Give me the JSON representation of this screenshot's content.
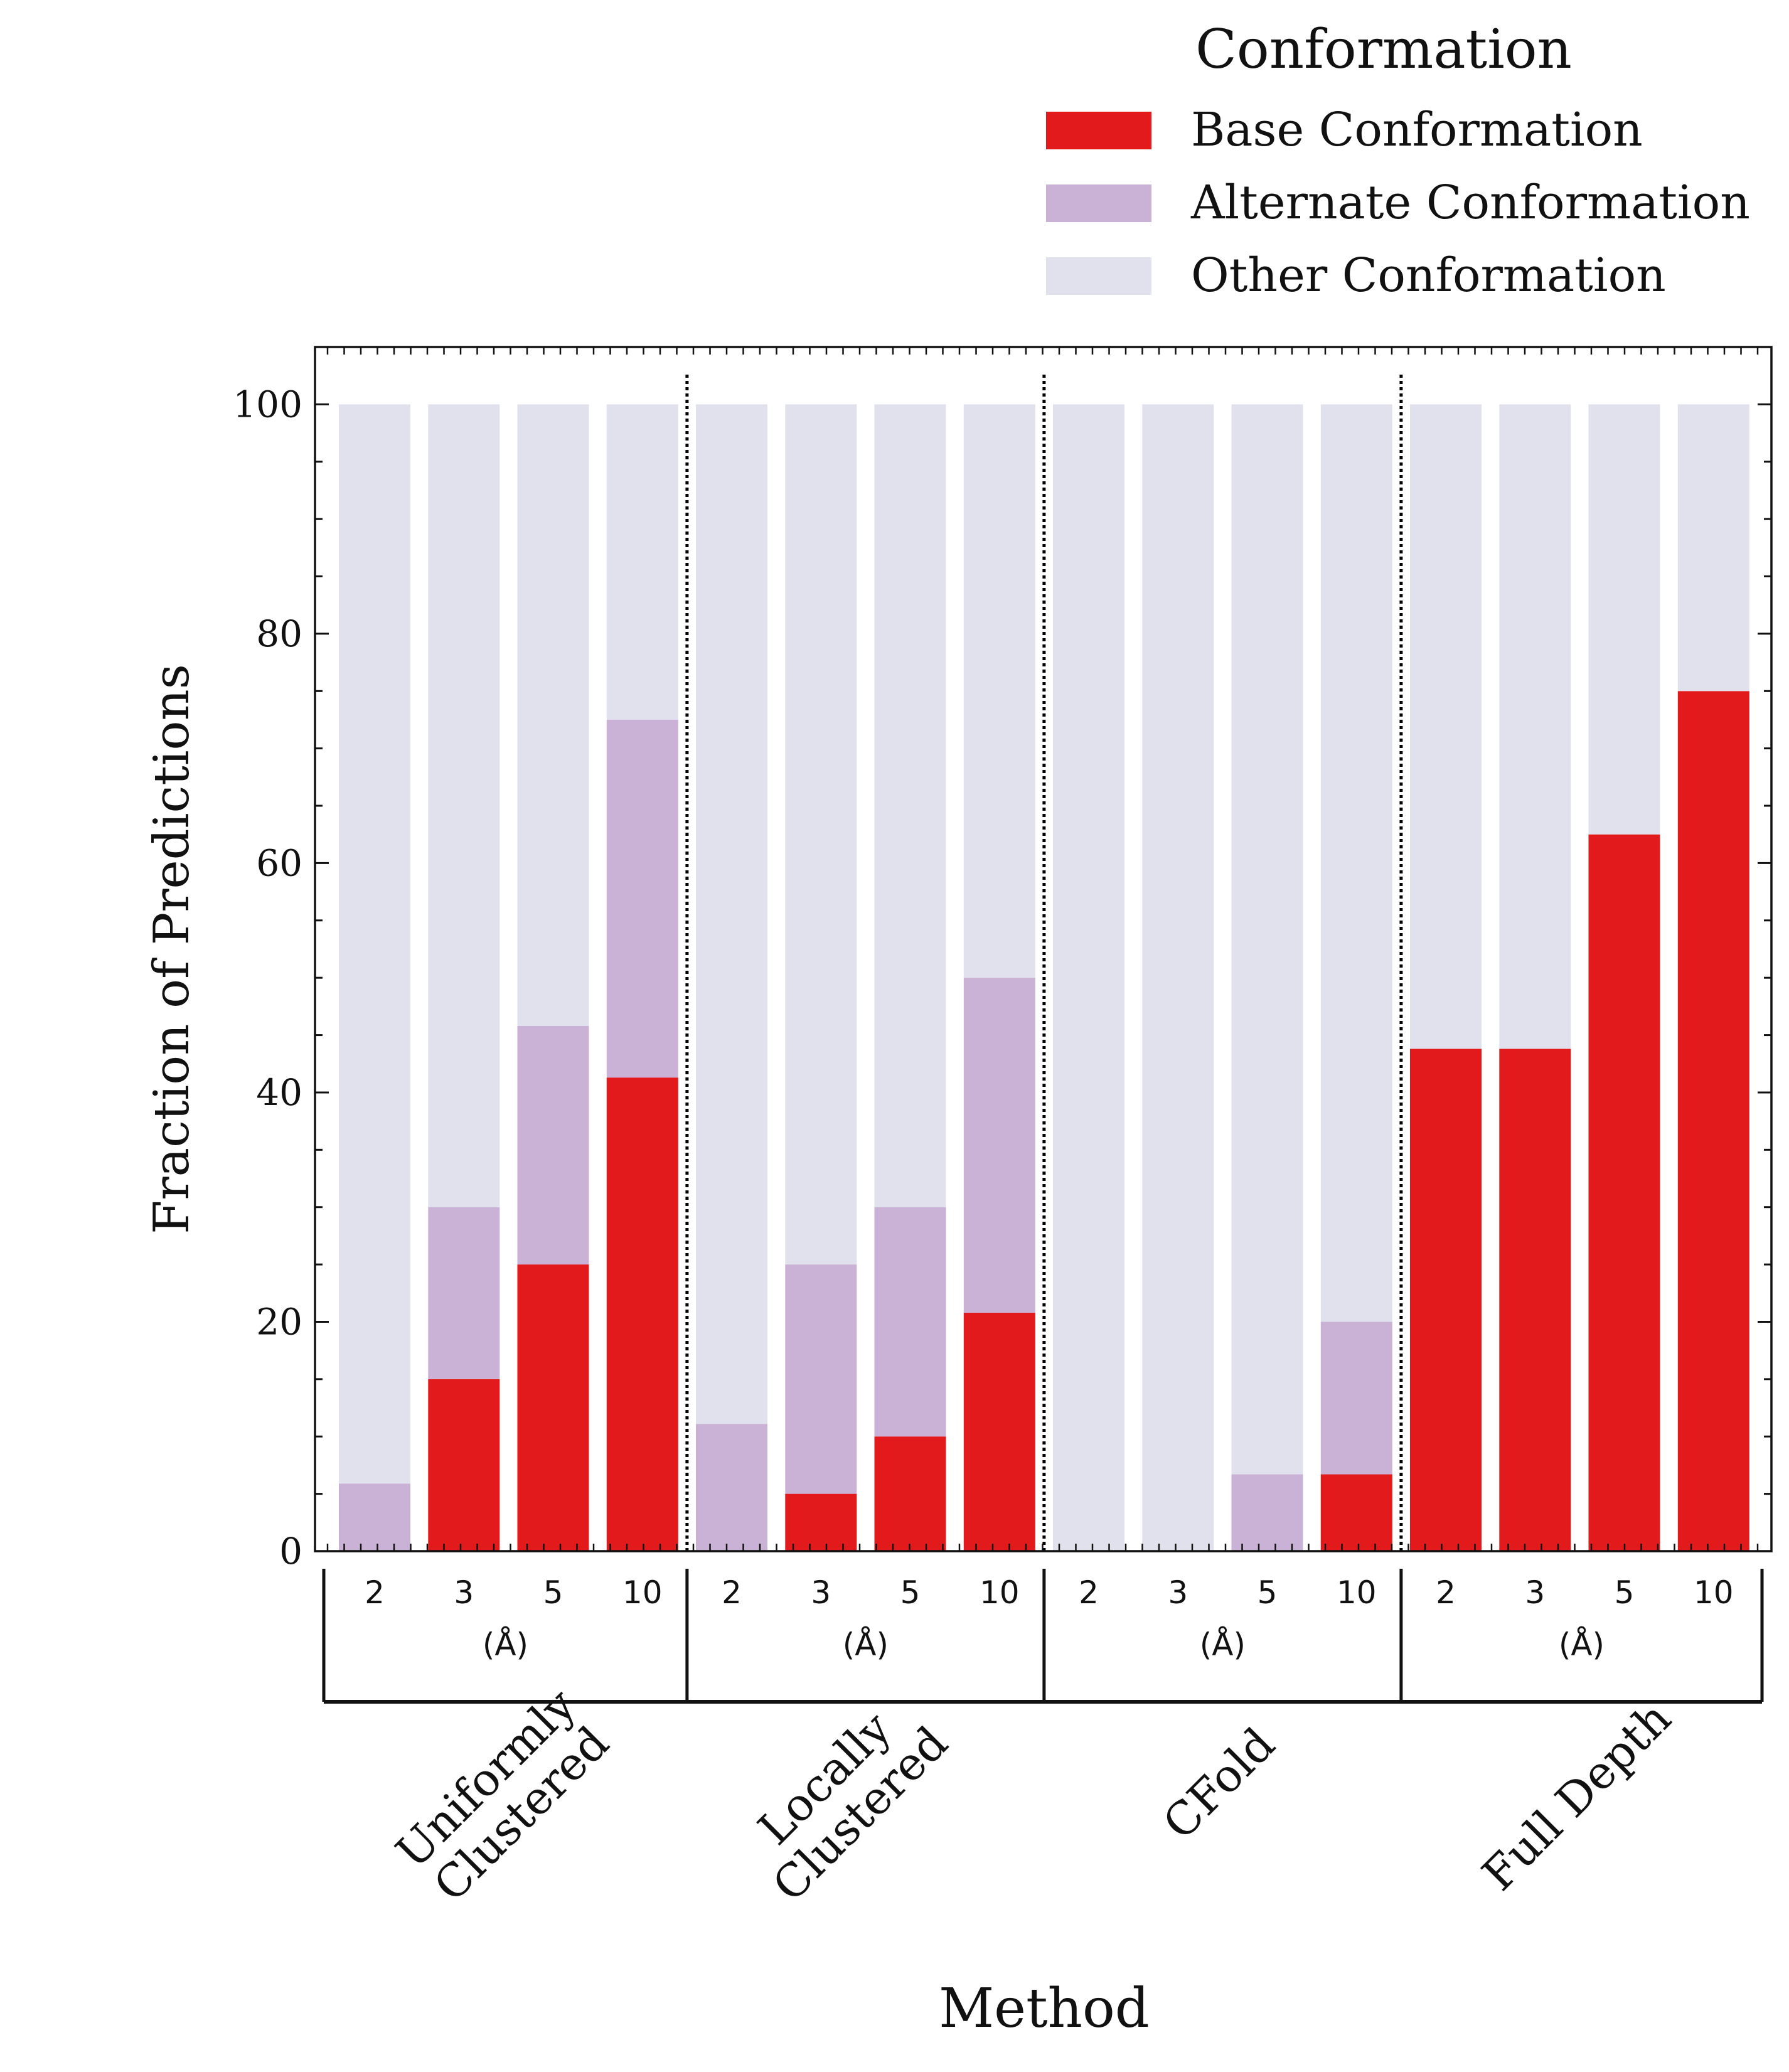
{
  "chart_data": {
    "type": "bar",
    "stacked": true,
    "ylabel": "Fraction of Predictions",
    "xlabel": "Method",
    "ylim": [
      0,
      105
    ],
    "yticks": [
      0,
      20,
      40,
      60,
      80,
      100
    ],
    "grid": false,
    "legend": {
      "title": "Conformation",
      "position": "top-right, above plot",
      "entries": [
        "Base Conformation",
        "Alternate Conformation",
        "Other Conformation"
      ]
    },
    "colors": {
      "Base Conformation": "#e31a1c",
      "Alternate Conformation": "#cab2d6",
      "Other Conformation": "#e1e1ed"
    },
    "unit_label": "(Å)",
    "group_separator_style": "dotted",
    "groups": [
      {
        "name": "Uniformly\nClustered",
        "categories": [
          "2",
          "3",
          "5",
          "10"
        ],
        "series": [
          {
            "name": "Base Conformation",
            "values": [
              0,
              15,
              25,
              41.3
            ]
          },
          {
            "name": "Alternate Conformation",
            "values": [
              5.9,
              15,
              20.8,
              31.2
            ]
          },
          {
            "name": "Other Conformation",
            "values": [
              94.1,
              70,
              54.2,
              27.5
            ]
          }
        ]
      },
      {
        "name": "Locally\nClustered",
        "categories": [
          "2",
          "3",
          "5",
          "10"
        ],
        "series": [
          {
            "name": "Base Conformation",
            "values": [
              0,
              5,
              10,
              20.8
            ]
          },
          {
            "name": "Alternate Conformation",
            "values": [
              11.1,
              20,
              20,
              29.2
            ]
          },
          {
            "name": "Other Conformation",
            "values": [
              88.9,
              75,
              70,
              50
            ]
          }
        ]
      },
      {
        "name": "CFold",
        "categories": [
          "2",
          "3",
          "5",
          "10"
        ],
        "series": [
          {
            "name": "Base Conformation",
            "values": [
              0,
              0,
              0,
              6.7
            ]
          },
          {
            "name": "Alternate Conformation",
            "values": [
              0,
              0,
              6.7,
              13.3
            ]
          },
          {
            "name": "Other Conformation",
            "values": [
              100,
              100,
              93.3,
              80
            ]
          }
        ]
      },
      {
        "name": "Full Depth",
        "categories": [
          "2",
          "3",
          "5",
          "10"
        ],
        "series": [
          {
            "name": "Base Conformation",
            "values": [
              43.8,
              43.8,
              62.5,
              75
            ]
          },
          {
            "name": "Alternate Conformation",
            "values": [
              0,
              0,
              0,
              0
            ]
          },
          {
            "name": "Other Conformation",
            "values": [
              56.2,
              56.2,
              37.5,
              25
            ]
          }
        ]
      }
    ]
  }
}
